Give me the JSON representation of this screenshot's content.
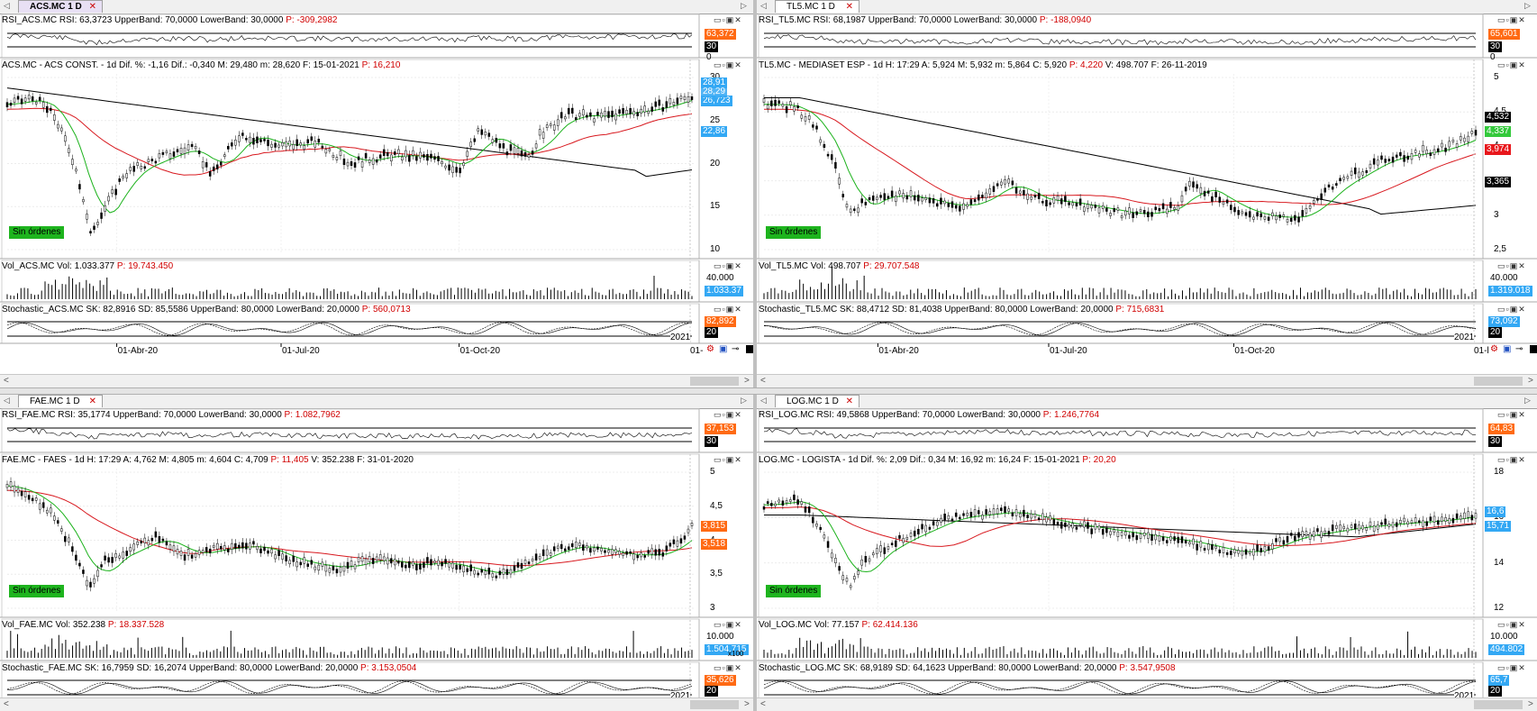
{
  "colors": {
    "rsi_up": "#ff6a13",
    "rsi_bar": "#000000",
    "price_blue": "#33a8f4",
    "price_red": "#e8171c",
    "price_green": "#34c93c",
    "price_black": "#000000",
    "sin_ordenes": "#1eb41e",
    "sma_short": "#1bb21b",
    "sma_long": "#d8191f",
    "sma_vlong": "#000000"
  },
  "dates": [
    "01-Abr-20",
    "01-Jul-20",
    "01-Oct-20"
  ],
  "panels": [
    {
      "id": "acs",
      "tab": "ACS.MC 1 D",
      "rsi": {
        "label": "RSI_ACS.MC  RSI: 63,3723  UpperBand: 70,0000  LowerBand: 30,0000  ",
        "p": "P: -309,2982",
        "badge": "63,372",
        "band": "30",
        "zero": "0"
      },
      "price": {
        "label": "ACS.MC - ACS CONST. - 1d  Dif. %: -1,16  Dif.: -0,340  M: 29,480  m: 28,620  F: 15-01-2021  ",
        "p": "P: 16,210",
        "ticks": [
          "30",
          "25",
          "20",
          "15",
          "10"
        ],
        "badges": [
          "28,91",
          "26,723",
          "22,86"
        ],
        "badge_ghost": "28,29"
      },
      "vol": {
        "label": "Vol_ACS.MC  Vol: 1.033.377  ",
        "p": "P: 19.743.450",
        "tick": "40.000",
        "badge": "1.033.37"
      },
      "stoch": {
        "label": "Stochastic_ACS.MC  SK: 82,8916  SD: 85,5586  UpperBand: 80,0000  LowerBand: 20,0000  ",
        "p": "P: 560,0713",
        "badge": "82,892",
        "band": "20"
      },
      "year": "2021",
      "date_edge": "01-",
      "sin_ordenes": "Sin órdenes"
    },
    {
      "id": "tl5",
      "tab": "TL5.MC 1 D",
      "rsi": {
        "label": "RSI_TL5.MC  RSI: 68,1987  UpperBand: 70,0000  LowerBand: 30,0000  ",
        "p": "P: -188,0940",
        "badge": "65,601",
        "band": "30",
        "zero": "0"
      },
      "price": {
        "label": "TL5.MC - MEDIASET ESP - 1d  H: 17:29  A: 5,924  M: 5,932  m: 5,864  C: 5,920  ",
        "p": "P: 4,220",
        "extra": "  V: 498.707  F: 26-11-2019",
        "ticks": [
          "5",
          "4,5",
          "4",
          "3,5",
          "3",
          "2,5"
        ],
        "badges": [
          "4,532",
          "4,337",
          "3,974",
          "3,365"
        ]
      },
      "vol": {
        "label": "Vol_TL5.MC  Vol: 498.707  ",
        "p": "P: 29.707.548",
        "tick": "40.000",
        "badge": "1.319.018"
      },
      "stoch": {
        "label": "Stochastic_TL5.MC  SK: 88,4712  SD: 81,4038  UpperBand: 80,0000  LowerBand: 20,0000  ",
        "p": "P: 715,6831",
        "badge": "73,092",
        "band": "20"
      },
      "year": "2021",
      "date_edge": "01-l",
      "sin_ordenes": "Sin órdenes"
    },
    {
      "id": "fae",
      "tab": "FAE.MC 1 D",
      "rsi": {
        "label": "RSI_FAE.MC  RSI: 35,1774  UpperBand: 70,0000  LowerBand: 30,0000  ",
        "p": "P: 1.082,7962",
        "badge": "37,153",
        "band": "30"
      },
      "price": {
        "label": "FAE.MC - FAES - 1d  H: 17:29  A: 4,762  M: 4,805  m: 4,604  C: 4,709  ",
        "p": "P: 11,405",
        "extra": "  V: 352.238  F: 31-01-2020",
        "ticks": [
          "5",
          "4,5",
          "4",
          "3,5",
          "3"
        ],
        "badges": [
          "3,815",
          "3,518"
        ]
      },
      "vol": {
        "label": "Vol_FAE.MC  Vol: 352.238  ",
        "p": "P: 18.337.528",
        "tick": "10.000",
        "badge": "1.504.715",
        "mult": "x100"
      },
      "stoch": {
        "label": "Stochastic_FAE.MC  SK: 16,7959  SD: 16,2074  UpperBand: 80,0000  LowerBand: 20,0000  ",
        "p": "P: 3.153,0504",
        "badge": "35,626",
        "band": "20"
      },
      "year": "2021",
      "date_edge": "01-",
      "sin_ordenes": "Sin órdenes"
    },
    {
      "id": "log",
      "tab": "LOG.MC 1 D",
      "rsi": {
        "label": "RSI_LOG.MC  RSI: 49,5868  UpperBand: 70,0000  LowerBand: 30,0000  ",
        "p": "P: 1.246,7764",
        "badge": "64,83",
        "band": "30"
      },
      "price": {
        "label": "LOG.MC - LOGISTA - 1d  Dif. %: 2,09  Dif.: 0,34  M: 16,92  m: 16,24  F: 15-01-2021  ",
        "p": "P: 20,20",
        "ticks": [
          "18",
          "16",
          "14",
          "12"
        ],
        "badges": [
          "16,6",
          "15,71"
        ]
      },
      "vol": {
        "label": "Vol_LOG.MC  Vol: 77.157  ",
        "p": "P: 62.414.136",
        "tick": "10.000",
        "badge": "494.802"
      },
      "stoch": {
        "label": "Stochastic_LOG.MC  SK: 68,9189  SD: 64,1623  UpperBand: 80,0000  LowerBand: 20,0000  ",
        "p": "P: 3.547,9508",
        "badge": "65,7",
        "band": "20"
      },
      "year": "2021",
      "date_edge": "01-",
      "sin_ordenes": "Sin órdenes"
    }
  ]
}
